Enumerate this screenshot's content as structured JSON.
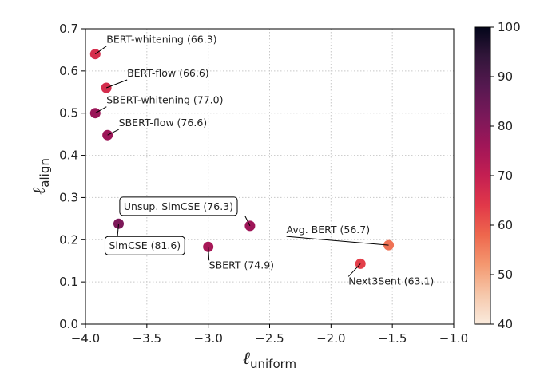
{
  "chart_data": {
    "type": "scatter",
    "title": "",
    "xlabel": {
      "main": "ℓ",
      "sub": "uniform"
    },
    "ylabel": {
      "main": "ℓ",
      "sub": "align"
    },
    "xlim": [
      -4.0,
      -1.0
    ],
    "ylim": [
      0.0,
      0.7
    ],
    "xticks": [
      -4.0,
      -3.5,
      -3.0,
      -2.5,
      -2.0,
      -1.5,
      -1.0
    ],
    "xtick_labels": [
      "−4.0",
      "−3.5",
      "−3.0",
      "−2.5",
      "−2.0",
      "−1.5",
      "−1.0"
    ],
    "yticks": [
      0.0,
      0.1,
      0.2,
      0.3,
      0.4,
      0.5,
      0.6,
      0.7
    ],
    "ytick_labels": [
      "0.0",
      "0.1",
      "0.2",
      "0.3",
      "0.4",
      "0.5",
      "0.6",
      "0.7"
    ],
    "grid": true,
    "colorbar": {
      "range": [
        40,
        100
      ],
      "ticks": [
        40,
        50,
        60,
        70,
        80,
        90,
        100
      ],
      "tick_labels": [
        "40",
        "50",
        "60",
        "70",
        "80",
        "90",
        "100"
      ],
      "colormap": "rocket_r"
    },
    "points": [
      {
        "name": "BERT-whitening",
        "label": "BERT-whitening (66.3)",
        "x": -3.92,
        "y": 0.64,
        "score": 66.3,
        "boxed": false
      },
      {
        "name": "BERT-flow",
        "label": "BERT-flow (66.6)",
        "x": -3.83,
        "y": 0.56,
        "score": 66.6,
        "boxed": false
      },
      {
        "name": "SBERT-whitening",
        "label": "SBERT-whitening (77.0)",
        "x": -3.92,
        "y": 0.5,
        "score": 77.0,
        "boxed": false
      },
      {
        "name": "SBERT-flow",
        "label": "SBERT-flow (76.6)",
        "x": -3.82,
        "y": 0.448,
        "score": 76.6,
        "boxed": false
      },
      {
        "name": "Unsup. SimCSE",
        "label": "Unsup. SimCSE (76.3)",
        "x": -2.66,
        "y": 0.233,
        "score": 76.3,
        "boxed": true
      },
      {
        "name": "SimCSE",
        "label": "SimCSE (81.6)",
        "x": -3.73,
        "y": 0.238,
        "score": 81.6,
        "boxed": true
      },
      {
        "name": "SBERT",
        "label": "SBERT (74.9)",
        "x": -3.0,
        "y": 0.183,
        "score": 74.9,
        "boxed": false
      },
      {
        "name": "Avg. BERT",
        "label": "Avg. BERT (56.7)",
        "x": -1.53,
        "y": 0.187,
        "score": 56.7,
        "boxed": false
      },
      {
        "name": "Next3Sent",
        "label": "Next3Sent (63.1)",
        "x": -1.76,
        "y": 0.143,
        "score": 63.1,
        "boxed": false
      }
    ]
  }
}
